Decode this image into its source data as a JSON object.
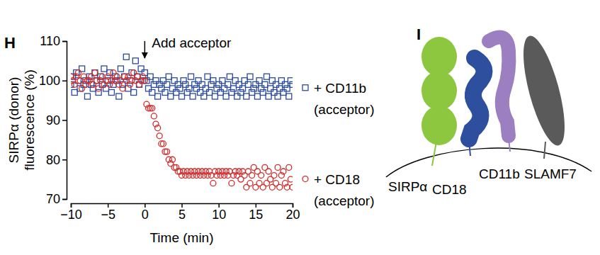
{
  "chart_data": {
    "type": "scatter",
    "panel_label": "H",
    "x_label": "Time (min)",
    "y_label": [
      "SIRPα (donor)",
      "fluorescence (%)"
    ],
    "xlim": [
      -10,
      20
    ],
    "xticks": [
      -10,
      -5,
      0,
      5,
      10,
      15,
      20
    ],
    "ylim": [
      70,
      110
    ],
    "yticks": [
      70,
      80,
      90,
      100,
      110
    ],
    "annotations": [
      {
        "text": "Add acceptor",
        "x": 0
      }
    ],
    "x": [
      -10,
      -9.75,
      -9.5,
      -9.25,
      -9,
      -8.75,
      -8.5,
      -8.25,
      -8,
      -7.75,
      -7.5,
      -7.25,
      -7,
      -6.75,
      -6.5,
      -6.25,
      -6,
      -5.75,
      -5.5,
      -5.25,
      -5,
      -4.75,
      -4.5,
      -4.25,
      -4,
      -3.75,
      -3.5,
      -3.25,
      -3,
      -2.75,
      -2.5,
      -2.25,
      -2,
      -1.75,
      -1.5,
      -1.25,
      -1,
      -0.75,
      -0.5,
      -0.25,
      0,
      0.25,
      0.5,
      0.75,
      1,
      1.25,
      1.5,
      1.75,
      2,
      2.25,
      2.5,
      2.75,
      3,
      3.25,
      3.5,
      3.75,
      4,
      4.25,
      4.5,
      4.75,
      5,
      5.25,
      5.5,
      5.75,
      6,
      6.25,
      6.5,
      6.75,
      7,
      7.25,
      7.5,
      7.75,
      8,
      8.25,
      8.5,
      8.75,
      9,
      9.25,
      9.5,
      9.75,
      10,
      10.25,
      10.5,
      10.75,
      11,
      11.25,
      11.5,
      11.75,
      12,
      12.25,
      12.5,
      12.75,
      13,
      13.25,
      13.5,
      13.75,
      14,
      14.25,
      14.5,
      14.75,
      15,
      15.25,
      15.5,
      15.75,
      16,
      16.25,
      16.5,
      16.75,
      17,
      17.25,
      17.5,
      17.75,
      18,
      18.25,
      18.5,
      18.75,
      19,
      19.25,
      19.5,
      19.75,
      20
    ],
    "series": [
      {
        "name": "+ CD11b (acceptor)",
        "color": "#2a4a9c",
        "marker": "square",
        "values": [
          99,
          101,
          97,
          102,
          100,
          98,
          103,
          99,
          100,
          96,
          101,
          99,
          98,
          102,
          100,
          97,
          101,
          99,
          103,
          98,
          100,
          102,
          97,
          99,
          101,
          100,
          96,
          103,
          99,
          101,
          106,
          98,
          100,
          102,
          97,
          105,
          101,
          99,
          103,
          100,
          102,
          100,
          98,
          101,
          97,
          99,
          100,
          96,
          99,
          98,
          100,
          97,
          99,
          101,
          96,
          98,
          100,
          97,
          99,
          98,
          96,
          100,
          99,
          97,
          98,
          101,
          96,
          99,
          98,
          100,
          97,
          99,
          96,
          98,
          101,
          97,
          99,
          100,
          96,
          98,
          99,
          97,
          100,
          98,
          96,
          99,
          101,
          97,
          98,
          100,
          96,
          99,
          97,
          98,
          100,
          96,
          99,
          101,
          97,
          98,
          99,
          96,
          100,
          98,
          97,
          99,
          101,
          96,
          98,
          100,
          97,
          99,
          96,
          98,
          100,
          97,
          99,
          98,
          96,
          100,
          99
        ]
      },
      {
        "name": "+ CD18 (acceptor)",
        "color": "#d42a2a",
        "marker": "circle",
        "values": [
          101,
          100,
          99,
          101,
          102,
          100,
          98,
          101,
          99,
          100,
          100,
          101,
          99,
          102,
          100,
          98,
          100,
          101,
          99,
          100,
          101,
          99,
          100,
          102,
          100,
          101,
          99,
          100,
          98,
          101,
          100,
          101,
          99,
          100,
          102,
          100,
          101,
          99,
          100,
          101,
          100,
          94,
          93,
          93,
          93,
          91,
          89,
          88,
          86,
          84,
          84,
          82,
          82,
          80,
          79,
          80,
          78,
          78,
          77,
          77,
          76,
          77,
          76,
          77,
          76,
          77,
          76,
          77,
          76,
          77,
          76,
          77,
          76,
          77,
          76,
          77,
          76,
          74,
          77,
          76,
          77,
          76,
          77,
          76,
          77,
          76,
          77,
          74,
          76,
          77,
          76,
          77,
          75,
          77,
          76,
          73,
          77,
          74,
          76,
          78,
          73,
          77,
          74,
          76,
          73,
          78,
          74,
          77,
          75,
          73,
          76,
          74,
          78,
          73,
          76,
          77,
          74,
          73,
          78,
          75,
          73
        ]
      }
    ]
  },
  "diagram": {
    "panel_label": "I",
    "proteins": [
      {
        "label": "SIRPα",
        "color": "#8dc63f"
      },
      {
        "label": "CD18",
        "color": "#2e4f9e"
      },
      {
        "label": "CD11b",
        "color": "#9b7fc0"
      },
      {
        "label": "SLAMF7",
        "color": "#5a5a5a"
      }
    ]
  }
}
